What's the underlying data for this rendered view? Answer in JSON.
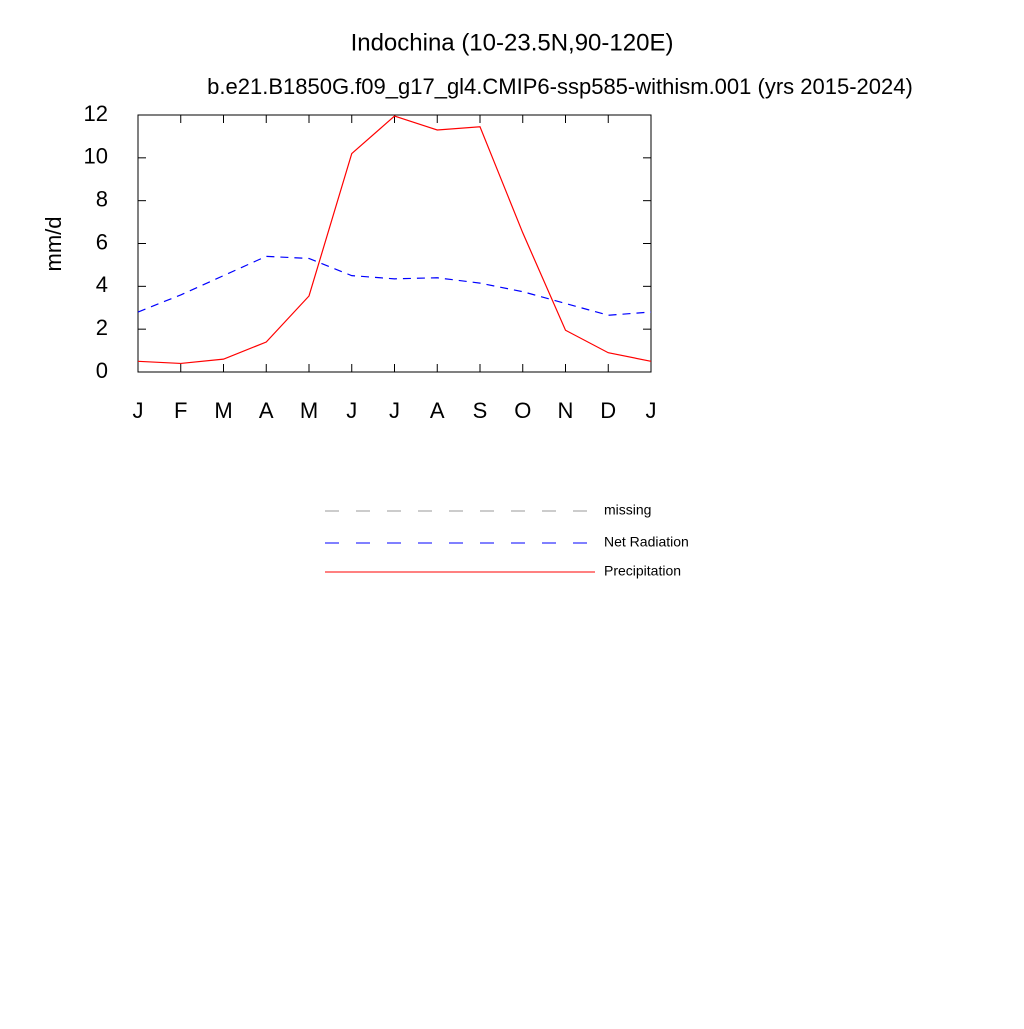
{
  "chart_data": {
    "type": "line",
    "title": "Indochina (10-23.5N,90-120E)",
    "subtitle": "b.e21.B1850G.f09_g17_gl4.CMIP6-ssp585-withism.001 (yrs 2015-2024)",
    "y_label": "mm/d",
    "categories": [
      "J",
      "F",
      "M",
      "A",
      "M",
      "J",
      "J",
      "A",
      "S",
      "O",
      "N",
      "D",
      "J"
    ],
    "ylim": [
      0,
      12
    ],
    "yticks": [
      0,
      2,
      4,
      6,
      8,
      10,
      12
    ],
    "series": [
      {
        "name": "missing",
        "color": "#999999",
        "dashed": true,
        "values": [
          null,
          null,
          null,
          null,
          null,
          null,
          null,
          null,
          null,
          null,
          null,
          null,
          null
        ]
      },
      {
        "name": "Net Radiation",
        "color": "#0000ff",
        "dashed": true,
        "values": [
          2.8,
          3.6,
          4.5,
          5.4,
          5.3,
          4.5,
          4.35,
          4.4,
          4.15,
          3.75,
          3.2,
          2.65,
          2.8
        ]
      },
      {
        "name": "Precipitation",
        "color": "#ff0000",
        "dashed": false,
        "values": [
          0.5,
          0.4,
          0.6,
          1.4,
          3.55,
          10.2,
          11.95,
          11.3,
          11.45,
          6.5,
          1.95,
          0.9,
          0.5
        ]
      }
    ]
  }
}
